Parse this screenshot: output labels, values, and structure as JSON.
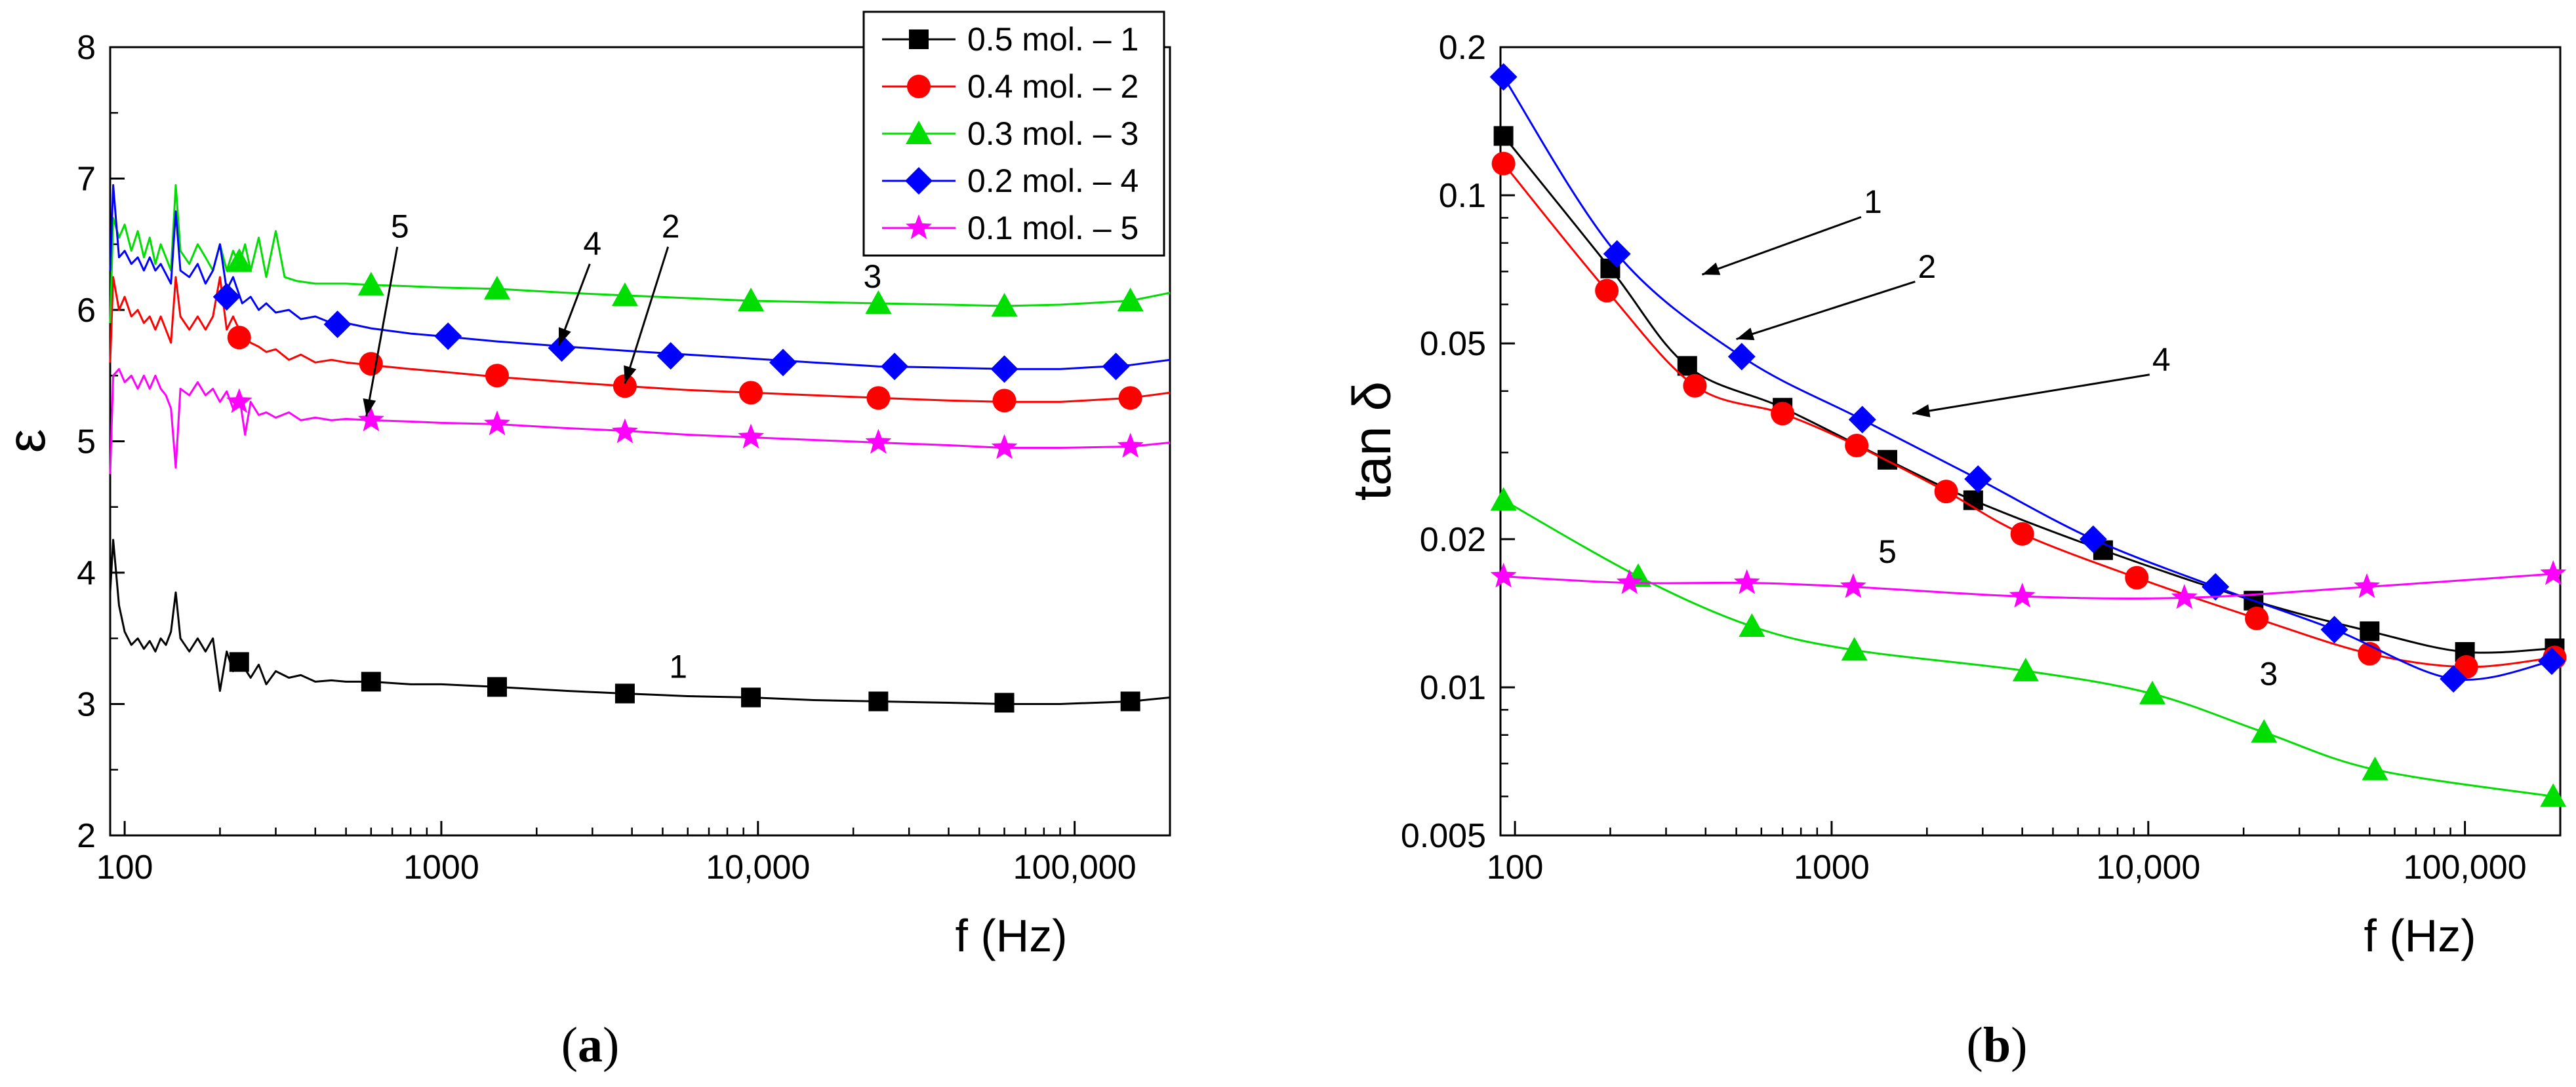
{
  "chart_data": [
    {
      "id": "a",
      "type": "line",
      "panel_label": "a",
      "xlabel": "f (Hz)",
      "ylabel": "ε",
      "xscale": "log",
      "xlim": [
        90,
        200000
      ],
      "ylim": [
        2,
        8
      ],
      "xticks": [
        100,
        1000,
        10000,
        100000
      ],
      "xtick_labels": [
        "100",
        "1000",
        "10,000",
        "100,000"
      ],
      "yticks": [
        2,
        3,
        4,
        5,
        6,
        7,
        8
      ],
      "ytick_labels": [
        "2",
        "3",
        "4",
        "5",
        "6",
        "7",
        "8"
      ],
      "legend_position": "top-right",
      "series": [
        {
          "name": "0.5 mol. – 1",
          "label": "1",
          "color": "#000000",
          "marker": "square",
          "x": [
            90,
            92,
            96,
            100,
            105,
            110,
            115,
            120,
            125,
            130,
            135,
            140,
            145,
            150,
            160,
            170,
            180,
            190,
            200,
            210,
            220,
            235,
            250,
            265,
            280,
            300,
            330,
            360,
            400,
            450,
            500,
            600,
            800,
            1000,
            1500,
            2500,
            3800,
            6000,
            9500,
            15000,
            24000,
            40000,
            60000,
            90000,
            150000,
            200000
          ],
          "y": [
            3.85,
            4.25,
            3.75,
            3.55,
            3.45,
            3.5,
            3.42,
            3.48,
            3.4,
            3.5,
            3.45,
            3.55,
            3.85,
            3.5,
            3.4,
            3.5,
            3.4,
            3.5,
            3.1,
            3.4,
            3.25,
            3.3,
            3.2,
            3.3,
            3.15,
            3.25,
            3.2,
            3.22,
            3.17,
            3.18,
            3.17,
            3.17,
            3.15,
            3.15,
            3.13,
            3.1,
            3.08,
            3.06,
            3.05,
            3.03,
            3.02,
            3.01,
            3.0,
            3.0,
            3.02,
            3.05
          ],
          "marker_x": [
            230,
            600,
            1500,
            3800,
            9500,
            24000,
            60000,
            150000
          ],
          "marker_y": [
            3.32,
            3.17,
            3.13,
            3.08,
            3.05,
            3.02,
            3.01,
            3.02
          ]
        },
        {
          "name": "0.4 mol. – 2",
          "label": "2",
          "color": "#ff0000",
          "marker": "circle",
          "x": [
            90,
            92,
            96,
            100,
            105,
            110,
            115,
            120,
            125,
            130,
            140,
            145,
            150,
            160,
            170,
            180,
            190,
            200,
            210,
            220,
            235,
            250,
            265,
            280,
            300,
            330,
            360,
            400,
            450,
            500,
            600,
            800,
            1000,
            1500,
            2500,
            3800,
            6000,
            9500,
            15000,
            24000,
            40000,
            60000,
            90000,
            150000,
            200000
          ],
          "y": [
            5.6,
            6.25,
            6.0,
            6.1,
            5.95,
            6.0,
            5.9,
            5.95,
            5.85,
            5.95,
            5.75,
            6.25,
            5.95,
            5.85,
            5.95,
            5.85,
            5.95,
            6.25,
            5.85,
            5.95,
            5.8,
            5.75,
            5.72,
            5.68,
            5.7,
            5.62,
            5.66,
            5.6,
            5.62,
            5.6,
            5.58,
            5.55,
            5.53,
            5.49,
            5.45,
            5.42,
            5.39,
            5.37,
            5.35,
            5.33,
            5.31,
            5.3,
            5.3,
            5.33,
            5.37
          ],
          "marker_x": [
            230,
            600,
            1500,
            3800,
            9500,
            24000,
            60000,
            150000
          ],
          "marker_y": [
            5.79,
            5.59,
            5.5,
            5.42,
            5.37,
            5.33,
            5.31,
            5.33
          ]
        },
        {
          "name": "0.3 mol. – 3",
          "label": "3",
          "color": "#00dd00",
          "marker": "triangle",
          "x": [
            90,
            92,
            96,
            100,
            105,
            110,
            115,
            120,
            125,
            130,
            135,
            140,
            145,
            150,
            160,
            170,
            180,
            190,
            200,
            210,
            220,
            230,
            240,
            250,
            265,
            280,
            300,
            320,
            350,
            400,
            500,
            600,
            800,
            1000,
            1500,
            2500,
            3800,
            6000,
            9500,
            15000,
            24000,
            40000,
            60000,
            90000,
            150000,
            200000
          ],
          "y": [
            5.9,
            6.7,
            6.55,
            6.65,
            6.45,
            6.6,
            6.4,
            6.55,
            6.35,
            6.5,
            6.4,
            6.3,
            6.95,
            6.45,
            6.35,
            6.5,
            6.4,
            6.3,
            6.5,
            6.3,
            6.45,
            6.35,
            6.5,
            6.3,
            6.55,
            6.25,
            6.6,
            6.25,
            6.22,
            6.2,
            6.2,
            6.19,
            6.18,
            6.17,
            6.16,
            6.13,
            6.11,
            6.09,
            6.07,
            6.06,
            6.05,
            6.04,
            6.03,
            6.04,
            6.07,
            6.13
          ],
          "marker_x": [
            230,
            600,
            1500,
            3800,
            9500,
            24000,
            60000,
            150000
          ],
          "marker_y": [
            6.37,
            6.19,
            6.16,
            6.11,
            6.07,
            6.05,
            6.03,
            6.07
          ]
        },
        {
          "name": "0.2 mol. – 4",
          "label": "4",
          "color": "#0000ff",
          "marker": "diamond",
          "x": [
            90,
            92,
            96,
            100,
            105,
            110,
            115,
            120,
            125,
            130,
            140,
            145,
            150,
            160,
            170,
            180,
            190,
            200,
            210,
            220,
            235,
            250,
            265,
            280,
            300,
            330,
            360,
            400,
            450,
            500,
            600,
            800,
            1000,
            1500,
            2500,
            3800,
            6000,
            9500,
            15000,
            24000,
            40000,
            60000,
            90000,
            150000,
            200000
          ],
          "y": [
            6.3,
            6.95,
            6.4,
            6.45,
            6.35,
            6.4,
            6.3,
            6.4,
            6.3,
            6.35,
            6.2,
            6.75,
            6.3,
            6.25,
            6.35,
            6.2,
            6.3,
            6.5,
            6.15,
            6.25,
            6.05,
            6.1,
            6.0,
            6.05,
            5.98,
            6.0,
            5.93,
            5.95,
            5.9,
            5.9,
            5.86,
            5.82,
            5.8,
            5.76,
            5.72,
            5.69,
            5.66,
            5.63,
            5.6,
            5.57,
            5.56,
            5.55,
            5.55,
            5.58,
            5.62
          ],
          "marker_x": [
            210,
            470,
            1050,
            2400,
            5300,
            12000,
            27000,
            60000,
            135000
          ],
          "marker_y": [
            6.1,
            5.89,
            5.8,
            5.71,
            5.65,
            5.6,
            5.57,
            5.55,
            5.57
          ]
        },
        {
          "name": "0.1 mol. – 5",
          "label": "5",
          "color": "#ff00ff",
          "marker": "star",
          "x": [
            90,
            92,
            96,
            100,
            105,
            110,
            115,
            120,
            125,
            130,
            135,
            140,
            145,
            150,
            160,
            170,
            180,
            190,
            200,
            210,
            220,
            230,
            240,
            250,
            265,
            280,
            300,
            330,
            360,
            400,
            450,
            500,
            600,
            800,
            1000,
            1500,
            2500,
            3800,
            6000,
            9500,
            15000,
            24000,
            40000,
            60000,
            90000,
            150000,
            200000
          ],
          "y": [
            4.75,
            5.5,
            5.55,
            5.45,
            5.5,
            5.4,
            5.5,
            5.4,
            5.5,
            5.4,
            5.35,
            5.25,
            4.8,
            5.4,
            5.35,
            5.45,
            5.35,
            5.4,
            5.3,
            5.38,
            5.25,
            5.35,
            5.05,
            5.3,
            5.2,
            5.22,
            5.18,
            5.22,
            5.16,
            5.18,
            5.16,
            5.17,
            5.16,
            5.15,
            5.14,
            5.13,
            5.1,
            5.08,
            5.05,
            5.03,
            5.01,
            4.99,
            4.97,
            4.95,
            4.95,
            4.96,
            4.99
          ],
          "marker_x": [
            230,
            600,
            1500,
            3800,
            9500,
            24000,
            60000,
            150000
          ],
          "marker_y": [
            5.3,
            5.16,
            5.13,
            5.07,
            5.03,
            4.99,
            4.95,
            4.96
          ]
        }
      ],
      "annotations": [
        {
          "text": "1",
          "x": 5600,
          "y": 3.2,
          "arrow": false
        },
        {
          "text": "3",
          "x": 23000,
          "y": 6.17,
          "arrow": false
        },
        {
          "text": "4",
          "x": 3000,
          "y": 6.42,
          "arrow_to": [
            2350,
            5.73
          ],
          "arrow": true
        },
        {
          "text": "2",
          "x": 5300,
          "y": 6.55,
          "arrow_to": [
            3800,
            5.44
          ],
          "arrow": true
        },
        {
          "text": "5",
          "x": 740,
          "y": 6.55,
          "arrow_to": [
            580,
            5.19
          ],
          "arrow": true
        }
      ]
    },
    {
      "id": "b",
      "type": "line",
      "panel_label": "b",
      "xlabel": "f (Hz)",
      "ylabel": "tan δ",
      "xscale": "log",
      "yscale": "log",
      "xlim": [
        90,
        200000
      ],
      "ylim": [
        0.005,
        0.2
      ],
      "xticks": [
        100,
        1000,
        10000,
        100000
      ],
      "xtick_labels": [
        "100",
        "1000",
        "10,000",
        "100,000"
      ],
      "yticks": [
        0.005,
        0.01,
        0.02,
        0.05,
        0.1,
        0.2
      ],
      "ytick_labels": [
        "0.005",
        "0.01",
        "0.02",
        "0.05",
        "0.1",
        "0.2"
      ],
      "series": [
        {
          "name": "1",
          "label": "1",
          "color": "#000000",
          "marker": "square",
          "x": [
            92,
            200,
            350,
            700,
            1500,
            2800,
            7200,
            21500,
            50000,
            100000,
            192000
          ],
          "y": [
            0.132,
            0.071,
            0.045,
            0.037,
            0.029,
            0.024,
            0.019,
            0.015,
            0.013,
            0.0118,
            0.012
          ]
        },
        {
          "name": "2",
          "label": "2",
          "color": "#ff0000",
          "marker": "circle",
          "x": [
            92,
            195,
            370,
            700,
            1200,
            2300,
            4000,
            9200,
            22000,
            50000,
            101000,
            192000
          ],
          "y": [
            0.116,
            0.064,
            0.041,
            0.036,
            0.031,
            0.025,
            0.0205,
            0.0167,
            0.0138,
            0.0117,
            0.011,
            0.0115
          ]
        },
        {
          "name": "3",
          "label": "3",
          "color": "#00dd00",
          "marker": "triangle",
          "x": [
            92,
            245,
            560,
            1180,
            4100,
            10300,
            23200,
            52000,
            190000
          ],
          "y": [
            0.024,
            0.0168,
            0.0133,
            0.0119,
            0.0108,
            0.0097,
            0.0081,
            0.0068,
            0.006
          ]
        },
        {
          "name": "4",
          "label": "4",
          "color": "#0000ff",
          "marker": "diamond",
          "x": [
            92,
            210,
            520,
            1250,
            2900,
            6700,
            16300,
            38700,
            92000,
            188000
          ],
          "y": [
            0.174,
            0.076,
            0.047,
            0.035,
            0.0265,
            0.02,
            0.016,
            0.0131,
            0.0104,
            0.0113
          ]
        },
        {
          "name": "5",
          "label": "5",
          "color": "#ff00ff",
          "marker": "star",
          "x": [
            92,
            230,
            540,
            1170,
            4000,
            13000,
            49000,
            190000
          ],
          "y": [
            0.0168,
            0.0163,
            0.0163,
            0.016,
            0.0153,
            0.0152,
            0.016,
            0.017
          ]
        }
      ],
      "annotations": [
        {
          "text": "1",
          "x": 1350,
          "y": 0.092,
          "arrow_to": [
            390,
            0.069
          ],
          "arrow": true
        },
        {
          "text": "2",
          "x": 2000,
          "y": 0.068,
          "arrow_to": [
            500,
            0.051
          ],
          "arrow": true
        },
        {
          "text": "4",
          "x": 11000,
          "y": 0.044,
          "arrow_to": [
            1800,
            0.036
          ],
          "arrow": true
        },
        {
          "text": "5",
          "x": 1500,
          "y": 0.0179,
          "arrow": false
        },
        {
          "text": "3",
          "x": 24000,
          "y": 0.0101,
          "arrow": false
        }
      ]
    }
  ]
}
